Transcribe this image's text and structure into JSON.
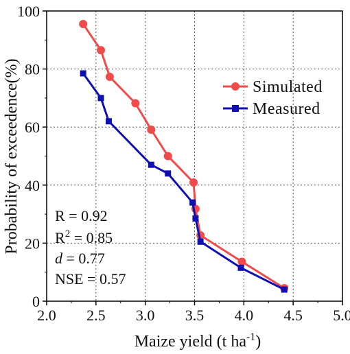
{
  "chart_data": {
    "type": "line",
    "title": "",
    "xlabel": "Maize yield (t ha",
    "xlabel_sup": "-1",
    "xlabel_close": ")",
    "ylabel": "Probability of exceedence(%)",
    "xlim": [
      2.0,
      5.0
    ],
    "ylim": [
      0,
      100
    ],
    "xticks": [
      "2.0",
      "2.5",
      "3.0",
      "3.5",
      "4.0",
      "4.5",
      "5.0"
    ],
    "yticks": [
      "0",
      "20",
      "40",
      "60",
      "80",
      "100"
    ],
    "xtick_values": [
      2.0,
      2.5,
      3.0,
      3.5,
      4.0,
      4.5,
      5.0
    ],
    "ytick_values": [
      0,
      20,
      40,
      60,
      80,
      100
    ],
    "grid": true,
    "legend_position": "upper-right",
    "series": [
      {
        "name": "Simulated",
        "color": "#f04a4a",
        "marker": "circle",
        "x": [
          2.37,
          2.55,
          2.64,
          2.9,
          3.06,
          3.23,
          3.49,
          3.51,
          3.56,
          3.98,
          4.41
        ],
        "y": [
          95.5,
          86.5,
          77.3,
          68.2,
          59.1,
          50.0,
          40.9,
          31.8,
          22.7,
          13.6,
          4.5
        ]
      },
      {
        "name": "Measured",
        "color": "#1010b0",
        "marker": "square",
        "x": [
          2.37,
          2.55,
          2.63,
          3.06,
          3.23,
          3.48,
          3.51,
          3.56,
          3.97,
          4.41
        ],
        "y": [
          78.5,
          70.0,
          62.0,
          47.0,
          44.0,
          34.0,
          28.5,
          20.5,
          11.5,
          4.0
        ]
      }
    ],
    "stats": {
      "r": "R = 0.92",
      "r2_prefix": "R",
      "r2_sup": "2",
      "r2_suffix": " = 0.85",
      "d_var": "d",
      "d_suffix": " = 0.77",
      "nse": "NSE = 0.57"
    }
  }
}
